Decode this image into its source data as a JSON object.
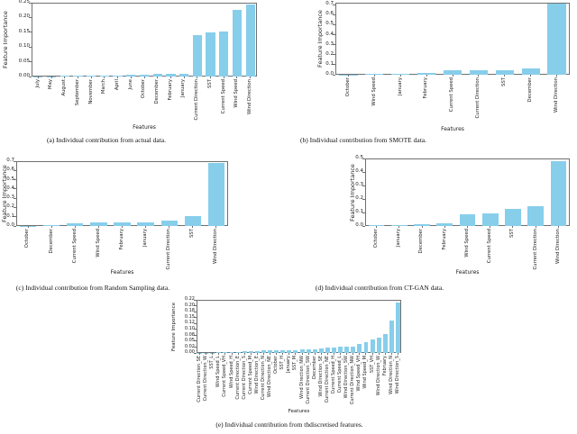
{
  "figure": {
    "description": "Feature importance bar charts, five subplots",
    "background": "#ffffff"
  },
  "colors": {
    "bar": "#87CEEB",
    "axis": "#707070",
    "text": "#1a1a1a"
  },
  "chart_data": [
    {
      "id": "a",
      "type": "bar",
      "caption": "(a) Individual contribution from actual data.",
      "xlabel": "Features",
      "ylabel": "Feature Importance",
      "categories": [
        "July",
        "May",
        "August",
        "September",
        "November",
        "March",
        "April",
        "June",
        "October",
        "December",
        "February",
        "January",
        "Current Direction",
        "SST",
        "Current Speed",
        "Wind Speed",
        "Wind Direction"
      ],
      "values": [
        0.001,
        0.0015,
        0.002,
        0.003,
        0.003,
        0.004,
        0.004,
        0.005,
        0.006,
        0.008,
        0.009,
        0.01,
        0.141,
        0.149,
        0.151,
        0.225,
        0.245
      ],
      "ylim": [
        0,
        0.25
      ],
      "ytick_values": [
        0,
        0.05,
        0.1,
        0.15,
        0.2,
        0.25
      ],
      "ytick_labels": [
        "0.00",
        "0.05",
        "0.10",
        "0.15",
        "0.20",
        "0.25"
      ],
      "grid": false,
      "legend": null,
      "bar_color": "#87CEEB"
    },
    {
      "id": "b",
      "type": "bar",
      "caption": "(b) Individual contribution from SMOTE data.",
      "xlabel": "Features",
      "ylabel": "Feature Importance",
      "categories": [
        "October",
        "Wind Speed",
        "January",
        "February",
        "Current Speed",
        "Current Direction",
        "SST",
        "December",
        "Wind Direction"
      ],
      "values": [
        0.002,
        0.012,
        0.013,
        0.018,
        0.044,
        0.043,
        0.046,
        0.062,
        0.71
      ],
      "ylim": [
        0,
        0.72
      ],
      "ytick_values": [
        0,
        0.1,
        0.2,
        0.3,
        0.4,
        0.5,
        0.6,
        0.7
      ],
      "ytick_labels": [
        "0.0",
        "0.1",
        "0.2",
        "0.3",
        "0.4",
        "0.5",
        "0.6",
        "0.7"
      ],
      "grid": false,
      "legend": null,
      "bar_color": "#87CEEB"
    },
    {
      "id": "c",
      "type": "bar",
      "caption": "(c) Individual contribution from Random Sampling data.",
      "xlabel": "Features",
      "ylabel": "Feature Importance",
      "categories": [
        "October",
        "December",
        "Current Speed",
        "Wind Speed",
        "February",
        "January",
        "Current Direction",
        "SST",
        "Wind Direction"
      ],
      "values": [
        0.002,
        0.01,
        0.026,
        0.036,
        0.036,
        0.042,
        0.061,
        0.11,
        0.68
      ],
      "ylim": [
        0,
        0.7
      ],
      "ytick_values": [
        0,
        0.1,
        0.2,
        0.3,
        0.4,
        0.5,
        0.6,
        0.7
      ],
      "ytick_labels": [
        "0.0",
        "0.1",
        "0.2",
        "0.3",
        "0.4",
        "0.5",
        "0.6",
        "0.7"
      ],
      "grid": false,
      "legend": null,
      "bar_color": "#87CEEB"
    },
    {
      "id": "d",
      "type": "bar",
      "caption": "(d) Individual contribution from CT-GAN data.",
      "xlabel": "Features",
      "ylabel": "Feature Importance",
      "categories": [
        "October",
        "January",
        "December",
        "February",
        "Wind Speed",
        "Current Speed",
        "SST",
        "Current Direction",
        "Wind Direction"
      ],
      "values": [
        0.005,
        0.005,
        0.016,
        0.022,
        0.088,
        0.092,
        0.126,
        0.145,
        0.48
      ],
      "ylim": [
        0,
        0.5
      ],
      "ytick_values": [
        0,
        0.1,
        0.2,
        0.3,
        0.4,
        0.5
      ],
      "ytick_labels": [
        "0.0",
        "0.1",
        "0.2",
        "0.3",
        "0.4",
        "0.5"
      ],
      "grid": false,
      "legend": null,
      "bar_color": "#87CEEB"
    },
    {
      "id": "e",
      "type": "bar",
      "caption": "(e) Individual contribution from thdiscretised features.",
      "xlabel": "Features",
      "ylabel": "Feature Importance",
      "categories": [
        "Current Direction_SE",
        "Current Direction_W",
        "SST_L",
        "Wind Speed_L",
        "Current Speed_VH",
        "Wind Speed_H",
        "Current Direction_E",
        "Current Direction_S",
        "Current Speed_M",
        "Wind Direction_E",
        "Current Direction_N",
        "Wind Direction_NE",
        "October",
        "SST_H",
        "January",
        "SST_M",
        "Wind Direction_NW",
        "Current Direction_SW",
        "December",
        "Wind Direction_SE",
        "Current Direction_NE",
        "Current Speed_H",
        "Current Speed_L",
        "Wind Direction_SW",
        "Current Direction_NW",
        "Wind Speed_VH",
        "Wind Speed_M",
        "SST_VH",
        "Wind Direction_W",
        "February",
        "Wind Direction_N",
        "Wind Direction_S"
      ],
      "values": [
        0.0005,
        0.001,
        0.001,
        0.002,
        0.003,
        0.004,
        0.005,
        0.008,
        0.009,
        0.009,
        0.01,
        0.01,
        0.01,
        0.011,
        0.013,
        0.013,
        0.016,
        0.016,
        0.017,
        0.018,
        0.022,
        0.024,
        0.025,
        0.025,
        0.026,
        0.037,
        0.046,
        0.056,
        0.065,
        0.081,
        0.139,
        0.215
      ],
      "ylim": [
        0,
        0.225
      ],
      "ytick_values": [
        0,
        0.025,
        0.05,
        0.075,
        0.1,
        0.125,
        0.15,
        0.175,
        0.2,
        0.225
      ],
      "ytick_labels": [
        "0.00",
        "0.02",
        "0.05",
        "0.08",
        "0.10",
        "0.12",
        "0.15",
        "0.18",
        "0.20",
        "0.22"
      ],
      "grid": false,
      "legend": null,
      "bar_color": "#87CEEB"
    }
  ]
}
